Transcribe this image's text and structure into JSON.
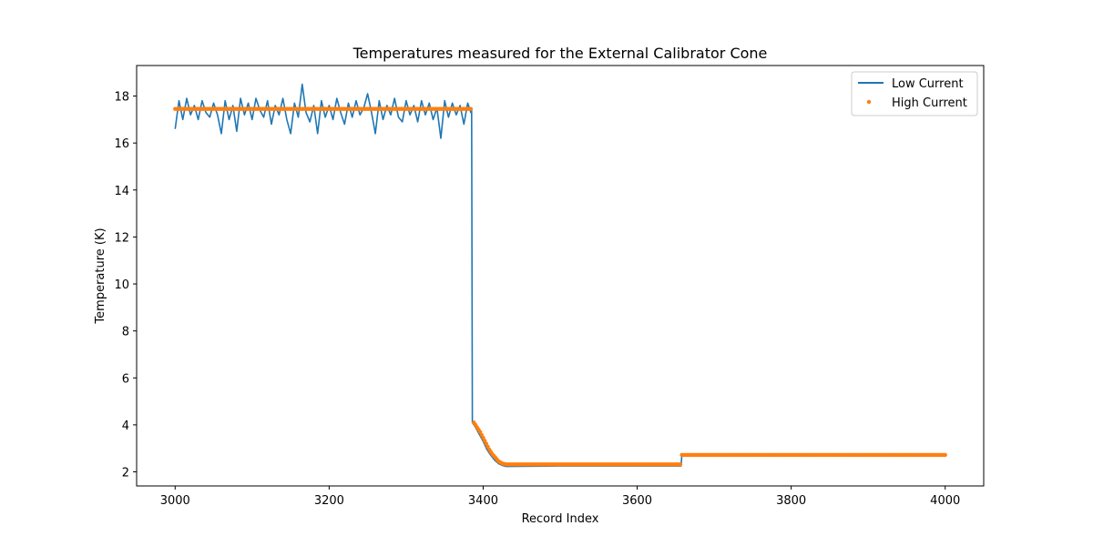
{
  "chart_data": {
    "type": "line",
    "title": "Temperatures measured for the External Calibrator Cone",
    "xlabel": "Record Index",
    "ylabel": "Temperature (K)",
    "xlim": [
      2950,
      4050
    ],
    "ylim": [
      1.4,
      19.3
    ],
    "xticks": [
      3000,
      3200,
      3400,
      3600,
      3800,
      4000
    ],
    "yticks": [
      2,
      4,
      6,
      8,
      10,
      12,
      14,
      16,
      18
    ],
    "grid": false,
    "legend_position": "top-right",
    "series": [
      {
        "name": "Low Current",
        "style": "line",
        "color": "#1f77b4",
        "x": [
          3000,
          3005,
          3010,
          3015,
          3020,
          3025,
          3030,
          3035,
          3040,
          3045,
          3050,
          3055,
          3060,
          3065,
          3070,
          3075,
          3080,
          3085,
          3090,
          3095,
          3100,
          3105,
          3110,
          3115,
          3120,
          3125,
          3130,
          3135,
          3140,
          3145,
          3150,
          3155,
          3160,
          3165,
          3170,
          3175,
          3180,
          3185,
          3190,
          3195,
          3200,
          3205,
          3210,
          3215,
          3220,
          3225,
          3230,
          3235,
          3240,
          3245,
          3250,
          3255,
          3260,
          3265,
          3270,
          3275,
          3280,
          3285,
          3290,
          3295,
          3300,
          3305,
          3310,
          3315,
          3320,
          3325,
          3330,
          3335,
          3340,
          3345,
          3350,
          3355,
          3360,
          3365,
          3370,
          3375,
          3380,
          3384,
          3385,
          3386,
          3390,
          3395,
          3400,
          3405,
          3410,
          3415,
          3420,
          3425,
          3430,
          3500,
          3600,
          3657,
          3658,
          3700,
          3800,
          3900,
          4000
        ],
        "y": [
          16.6,
          17.8,
          17.0,
          17.9,
          17.2,
          17.6,
          17.0,
          17.8,
          17.3,
          17.1,
          17.7,
          17.2,
          16.4,
          17.8,
          17.0,
          17.6,
          16.5,
          17.9,
          17.2,
          17.7,
          17.0,
          17.9,
          17.4,
          17.1,
          17.8,
          16.8,
          17.6,
          17.2,
          17.9,
          17.0,
          16.4,
          17.7,
          17.1,
          18.5,
          17.3,
          16.9,
          17.6,
          16.4,
          17.8,
          17.1,
          17.6,
          17.0,
          17.9,
          17.3,
          16.8,
          17.7,
          17.1,
          17.8,
          17.2,
          17.5,
          18.1,
          17.3,
          16.4,
          17.8,
          17.0,
          17.6,
          17.2,
          17.9,
          17.1,
          16.9,
          17.8,
          17.2,
          17.6,
          16.9,
          17.8,
          17.2,
          17.7,
          17.0,
          17.5,
          16.2,
          17.8,
          17.1,
          17.7,
          17.2,
          17.6,
          16.8,
          17.7,
          17.3,
          17.4,
          4.1,
          3.9,
          3.6,
          3.3,
          2.95,
          2.7,
          2.5,
          2.35,
          2.27,
          2.23,
          2.25,
          2.25,
          2.25,
          2.7,
          2.7,
          2.7,
          2.7,
          2.7
        ]
      },
      {
        "name": "High Current",
        "style": "scatter",
        "color": "#ff7f0e",
        "x": [
          3000,
          3385,
          3388,
          3392,
          3396,
          3400,
          3404,
          3408,
          3412,
          3416,
          3420,
          3425,
          3430,
          3435,
          3657,
          3658,
          4000
        ],
        "y": [
          17.45,
          17.45,
          4.1,
          3.9,
          3.7,
          3.45,
          3.2,
          2.95,
          2.75,
          2.6,
          2.45,
          2.35,
          2.32,
          2.32,
          2.32,
          2.72,
          2.72
        ]
      }
    ]
  }
}
